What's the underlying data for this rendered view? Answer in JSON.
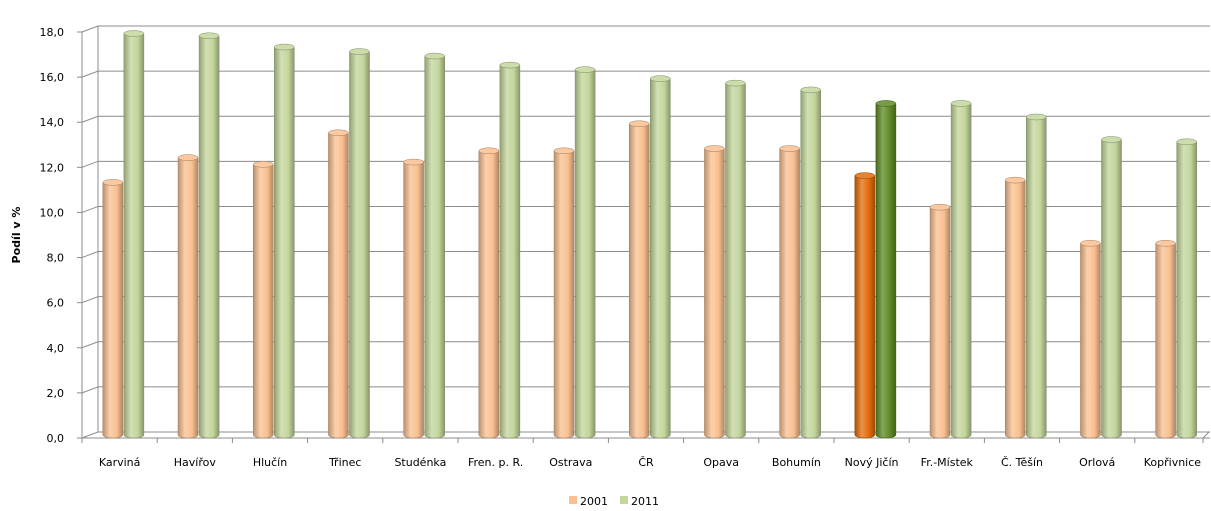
{
  "chart_data": {
    "type": "bar",
    "style": "3d-cylinder",
    "title": "",
    "xlabel": "",
    "ylabel": "Podíl v %",
    "ylim": [
      0,
      18
    ],
    "ytick_step": 2,
    "ytick_labels": [
      "0,0",
      "2,0",
      "4,0",
      "6,0",
      "8,0",
      "10,0",
      "12,0",
      "14,0",
      "16,0",
      "18,0"
    ],
    "grid": true,
    "legend_position": "bottom",
    "categories": [
      "Karviná",
      "Havířov",
      "Hlučín",
      "Třinec",
      "Studénka",
      "Fren. p. R.",
      "Ostrava",
      "ČR",
      "Opava",
      "Bohumín",
      "Nový Jičín",
      "Fr.-Místek",
      "Č. Těšín",
      "Orlová",
      "Kopřivnice"
    ],
    "highlight_category": "Nový Jičín",
    "series": [
      {
        "name": "2001",
        "color": "#FAC090",
        "highlight_color": "#E36C09",
        "values": [
          11.2,
          12.3,
          12.0,
          13.4,
          12.1,
          12.6,
          12.6,
          13.8,
          12.7,
          12.7,
          11.5,
          10.1,
          11.3,
          8.5,
          8.5
        ]
      },
      {
        "name": "2011",
        "color": "#C3D69B",
        "highlight_color": "#5E8A24",
        "values": [
          17.8,
          17.7,
          17.2,
          17.0,
          16.8,
          16.4,
          16.2,
          15.8,
          15.6,
          15.3,
          14.7,
          14.7,
          14.1,
          13.1,
          13.0
        ]
      }
    ]
  }
}
